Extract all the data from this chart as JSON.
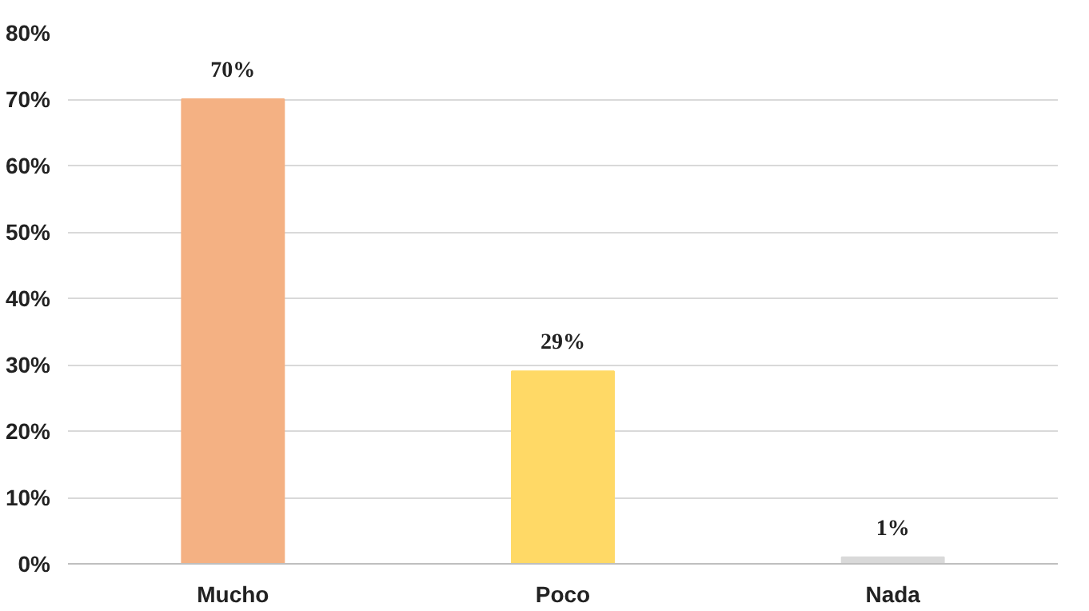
{
  "chart_data": {
    "type": "bar",
    "categories": [
      "Mucho",
      "Poco",
      "Nada"
    ],
    "values": [
      70,
      29,
      1
    ],
    "colors": [
      "#f4b183",
      "#ffd966",
      "#d9d9d9"
    ],
    "value_labels": [
      "70%",
      "29%",
      "1%"
    ],
    "ylim": [
      0,
      80
    ],
    "yticks": [
      {
        "value": 0,
        "label": "0%"
      },
      {
        "value": 10,
        "label": "10%"
      },
      {
        "value": 20,
        "label": "20%"
      },
      {
        "value": 30,
        "label": "30%"
      },
      {
        "value": 40,
        "label": "40%"
      },
      {
        "value": 50,
        "label": "50%"
      },
      {
        "value": 60,
        "label": "60%"
      },
      {
        "value": 70,
        "label": "70%"
      },
      {
        "value": 80,
        "label": "80%"
      }
    ],
    "grid": "y"
  }
}
